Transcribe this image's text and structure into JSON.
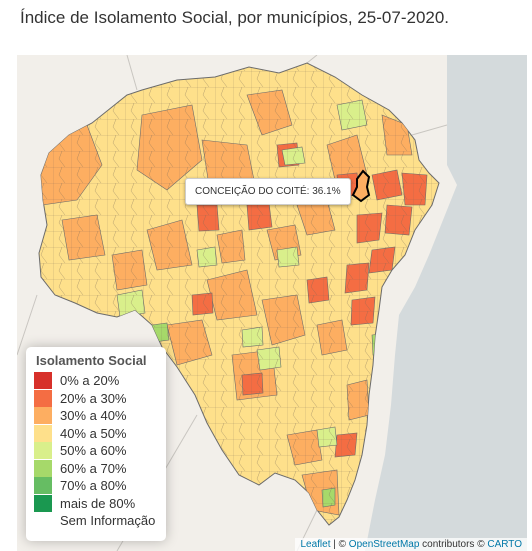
{
  "title": "Índice de Isolamento Social, por municípios, 25-07-2020.",
  "tooltip": "CONCEIÇÃO DO COITÉ: 36.1%",
  "legend": {
    "title": "Isolamento Social",
    "items": [
      {
        "label": "0% a 20%",
        "color": "#d7302a"
      },
      {
        "label": "20% a 30%",
        "color": "#f46d43"
      },
      {
        "label": "30% a 40%",
        "color": "#fdae61"
      },
      {
        "label": "40% a 50%",
        "color": "#fee08b"
      },
      {
        "label": "50% a 60%",
        "color": "#d9ef8b"
      },
      {
        "label": "60% a 70%",
        "color": "#a6d96a"
      },
      {
        "label": "70% a 80%",
        "color": "#66bd63"
      },
      {
        "label": "mais de 80%",
        "color": "#1a9850"
      },
      {
        "label": "Sem Informação",
        "color": ""
      }
    ]
  },
  "attribution": {
    "leaflet": "Leaflet",
    "sep": " | © ",
    "osm": "OpenStreetMap",
    "contributors": " contributors © ",
    "carto": "CARTO"
  },
  "colors": {
    "ocean": "#d4dadc",
    "land_neighbors": "#f2efea",
    "state_boundary": "#c9c6c1",
    "municipality_border": "#6b6b6b",
    "highlight_border": "#000000"
  }
}
